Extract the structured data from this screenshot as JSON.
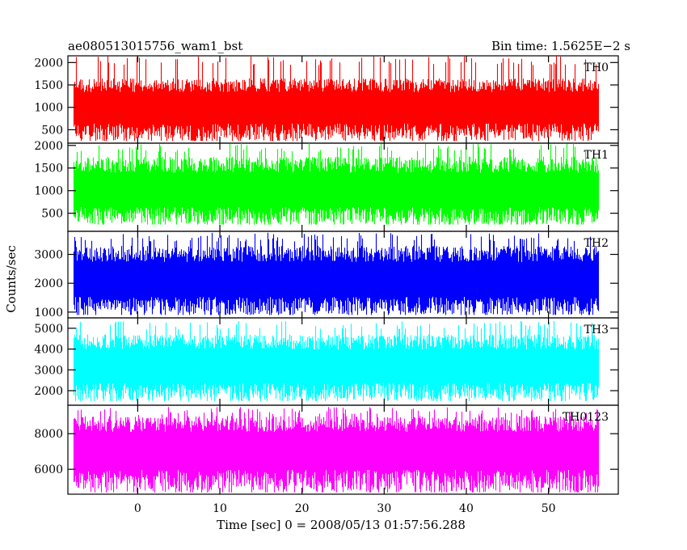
{
  "header": {
    "left": "ae080513015756_wam1_bst",
    "right": "Bin time: 1.5625E−2 s"
  },
  "chart_data": {
    "type": "line",
    "title": "ae080513015756_wam1_bst",
    "xlabel": "Time [sec] 0 = 2008/05/13 01:57:56.288",
    "ylabel": "Counts/sec",
    "xlim": [
      -8.5,
      58.5
    ],
    "xticks": [
      0,
      10,
      20,
      30,
      40,
      50
    ],
    "x_range": [
      -7.8,
      56.0
    ],
    "bin_time": 0.015625,
    "panels": [
      {
        "name": "TH0",
        "color": "#ff0000",
        "ylim": [
          200,
          2150
        ],
        "yticks": [
          500,
          1000,
          1500,
          2000
        ],
        "mean": 960,
        "min": 250,
        "typical_max": 1650,
        "peak_max": 2150
      },
      {
        "name": "TH1",
        "color": "#00ff00",
        "ylim": [
          100,
          2050
        ],
        "yticks": [
          500,
          1000,
          1500,
          2000
        ],
        "mean": 960,
        "min": 250,
        "typical_max": 1750,
        "peak_max": 2050
      },
      {
        "name": "TH2",
        "color": "#0000ff",
        "ylim": [
          800,
          3800
        ],
        "yticks": [
          1000,
          2000,
          3000
        ],
        "mean": 2050,
        "min": 900,
        "typical_max": 3300,
        "peak_max": 3750
      },
      {
        "name": "TH3",
        "color": "#00ffff",
        "ylim": [
          1300,
          5500
        ],
        "yticks": [
          2000,
          3000,
          4000,
          5000
        ],
        "mean": 3100,
        "min": 1500,
        "typical_max": 4700,
        "peak_max": 5350
      },
      {
        "name": "TH0123",
        "color": "#ff00ff",
        "ylim": [
          4600,
          9600
        ],
        "yticks": [
          6000,
          8000
        ],
        "mean": 7000,
        "min": 4700,
        "typical_max": 9000,
        "peak_max": 9500
      }
    ]
  }
}
